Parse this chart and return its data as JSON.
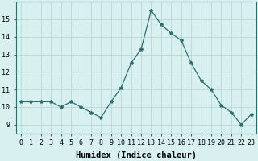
{
  "x": [
    0,
    1,
    2,
    3,
    4,
    5,
    6,
    7,
    8,
    9,
    10,
    11,
    12,
    13,
    14,
    15,
    16,
    17,
    18,
    19,
    20,
    21,
    22,
    23
  ],
  "y": [
    10.3,
    10.3,
    10.3,
    10.3,
    10.0,
    10.3,
    10.0,
    9.7,
    9.4,
    10.3,
    11.1,
    12.5,
    13.3,
    15.5,
    14.7,
    14.2,
    13.8,
    12.5,
    11.5,
    11.0,
    10.1,
    9.7,
    9.0,
    9.6
  ],
  "line_color": "#2d6e6e",
  "marker": "*",
  "marker_size": 3,
  "bg_color": "#d9f0f0",
  "grid_color": "#b8d8d8",
  "xlabel": "Humidex (Indice chaleur)",
  "ylim": [
    8.5,
    16.0
  ],
  "xlim": [
    -0.5,
    23.5
  ],
  "yticks": [
    9,
    10,
    11,
    12,
    13,
    14,
    15
  ],
  "xtick_labels": [
    "0",
    "1",
    "2",
    "3",
    "4",
    "5",
    "6",
    "7",
    "8",
    "9",
    "10",
    "11",
    "12",
    "13",
    "14",
    "15",
    "16",
    "17",
    "18",
    "19",
    "20",
    "21",
    "22",
    "23"
  ],
  "axis_fontsize": 6.5,
  "tick_fontsize": 6.0,
  "xlabel_fontsize": 7.5
}
